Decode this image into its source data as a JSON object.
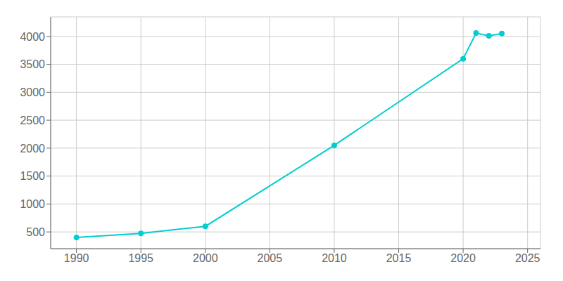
{
  "chart_data": {
    "type": "line",
    "x": [
      1990,
      1995,
      2000,
      2010,
      2020,
      2021,
      2022,
      2023
    ],
    "values": [
      400,
      475,
      600,
      2050,
      3600,
      4060,
      4010,
      4050
    ],
    "color": "#00CED1",
    "marker": "circle",
    "xlim": [
      1988,
      2026
    ],
    "ylim": [
      200,
      4350
    ],
    "xticks": [
      1990,
      1995,
      2000,
      2005,
      2010,
      2015,
      2020,
      2025
    ],
    "yticks": [
      500,
      1000,
      1500,
      2000,
      2500,
      3000,
      3500,
      4000
    ],
    "grid": true
  }
}
